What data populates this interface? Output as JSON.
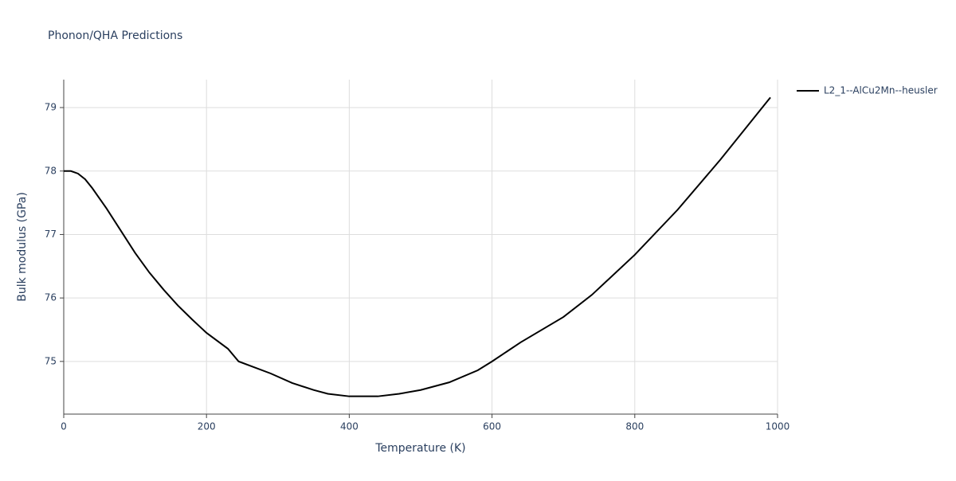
{
  "chart_data": {
    "type": "line",
    "title": "Phonon/QHA Predictions",
    "x_label": "Temperature (K)",
    "y_label": "Bulk modulus (GPa)",
    "x": [
      0,
      10,
      20,
      30,
      40,
      60,
      80,
      100,
      120,
      140,
      160,
      180,
      200,
      230,
      245,
      290,
      320,
      350,
      370,
      400,
      440,
      470,
      500,
      540,
      580,
      600,
      640,
      700,
      740,
      800,
      860,
      920,
      990
    ],
    "series": [
      {
        "name": "L2_1--AlCu2Mn--heusler",
        "color": "#000000",
        "values": [
          78.0,
          78.0,
          77.96,
          77.87,
          77.73,
          77.41,
          77.06,
          76.71,
          76.4,
          76.13,
          75.88,
          75.66,
          75.45,
          75.2,
          75.0,
          74.81,
          74.66,
          74.55,
          74.49,
          74.45,
          74.45,
          74.49,
          74.55,
          74.67,
          74.86,
          75.0,
          75.3,
          75.7,
          76.05,
          76.68,
          77.39,
          78.18,
          79.16
        ]
      }
    ],
    "xlim": [
      0,
      1000
    ],
    "xticks": [
      0,
      200,
      400,
      600,
      800,
      1000
    ],
    "ylim": [
      74.17,
      79.44
    ],
    "yticks": [
      75,
      76,
      77,
      78,
      79
    ],
    "grid": true,
    "legend": "right"
  }
}
